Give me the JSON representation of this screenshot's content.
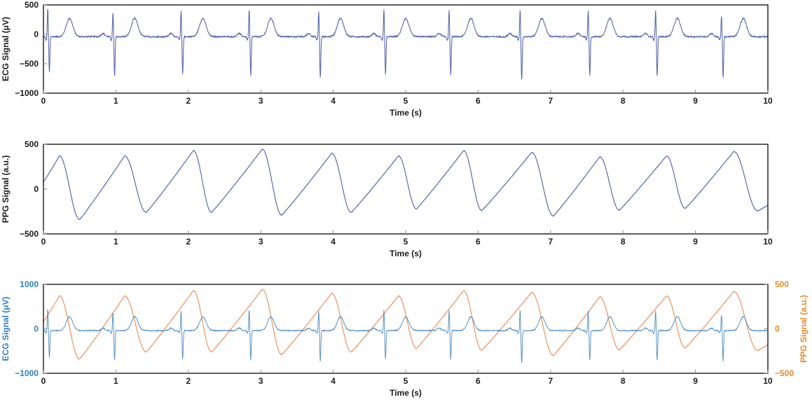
{
  "colors": {
    "ecg": "#5a6aad",
    "ppg": "#5a6aad",
    "ecg_combined": "#5b93c3",
    "ppg_combined": "#ec9a6c",
    "left_axis_combined": "#2f7fbf",
    "right_axis_combined": "#e38a2d",
    "axis": "#1a1a1a",
    "tick_mark": "#888888"
  },
  "icons": {},
  "chart_data": [
    {
      "type": "line",
      "xlabel": "Time (s)",
      "ylabel": "ECG Signal (μV)",
      "xlim": [
        0,
        10
      ],
      "ylim": [
        -1000,
        500
      ],
      "x_ticks": [
        "0",
        "1",
        "2",
        "3",
        "4",
        "5",
        "6",
        "7",
        "8",
        "9",
        "10"
      ],
      "y_ticks": [
        "500",
        "0",
        "−500",
        "−1000"
      ],
      "grid": false,
      "series": [
        {
          "signal": "ecg",
          "beat_times_s": [
            0.06,
            0.96,
            1.9,
            2.84,
            3.8,
            4.7,
            5.6,
            6.58,
            7.52,
            8.45,
            9.36
          ],
          "r_peaks": [
            450,
            380,
            400,
            420,
            390,
            410,
            400,
            420,
            400,
            410,
            320
          ],
          "s_troughs": [
            -650,
            -720,
            -680,
            -710,
            -730,
            -680,
            -690,
            -790,
            -710,
            -720,
            -730
          ],
          "t_wave_peak": 280,
          "t_wave_delay_s": 0.3,
          "p_wave_peak": 55,
          "baseline": -40,
          "noise": 14
        }
      ]
    },
    {
      "type": "line",
      "xlabel": "Time (s)",
      "ylabel": "PPG Signal (a.u.)",
      "xlim": [
        0,
        10
      ],
      "ylim": [
        -500,
        500
      ],
      "x_ticks": [
        "0",
        "1",
        "2",
        "3",
        "4",
        "5",
        "6",
        "7",
        "8",
        "9",
        "10"
      ],
      "y_ticks": [
        "500",
        "0",
        "−500"
      ],
      "grid": false,
      "series": [
        {
          "signal": "ppg",
          "start_value": 80,
          "peak_times_s": [
            0.22,
            1.12,
            2.07,
            3.02,
            3.98,
            4.9,
            5.8,
            6.74,
            7.68,
            8.6,
            9.53
          ],
          "peak_values": [
            370,
            370,
            430,
            445,
            400,
            370,
            430,
            410,
            360,
            370,
            420
          ],
          "trough_times_s": [
            0.5,
            1.42,
            2.32,
            3.29,
            4.25,
            5.15,
            6.05,
            7.04,
            7.95,
            8.86,
            9.86
          ],
          "trough_values": [
            -340,
            -260,
            -260,
            -290,
            -260,
            -220,
            -240,
            -300,
            -235,
            -215,
            -245
          ],
          "end_value": -180
        }
      ]
    },
    {
      "type": "line",
      "xlabel": "Time (s)",
      "ylabel_left": "ECG Signal (μV)",
      "ylabel_right": "PPG Signal (a.u.)",
      "xlim": [
        0,
        10
      ],
      "ylim_left": [
        -1000,
        1000
      ],
      "ylim_right": [
        -500,
        500
      ],
      "x_ticks": [
        "0",
        "1",
        "2",
        "3",
        "4",
        "5",
        "6",
        "7",
        "8",
        "9",
        "10"
      ],
      "y_ticks_left": [
        "1000",
        "0",
        "−1000"
      ],
      "y_ticks_right": [
        "500",
        "0",
        "−500"
      ],
      "grid": false,
      "series": [
        {
          "signal": "ecg",
          "axis": "left",
          "same_as_chart": 0
        },
        {
          "signal": "ppg",
          "axis": "right",
          "same_as_chart": 1
        }
      ]
    }
  ]
}
